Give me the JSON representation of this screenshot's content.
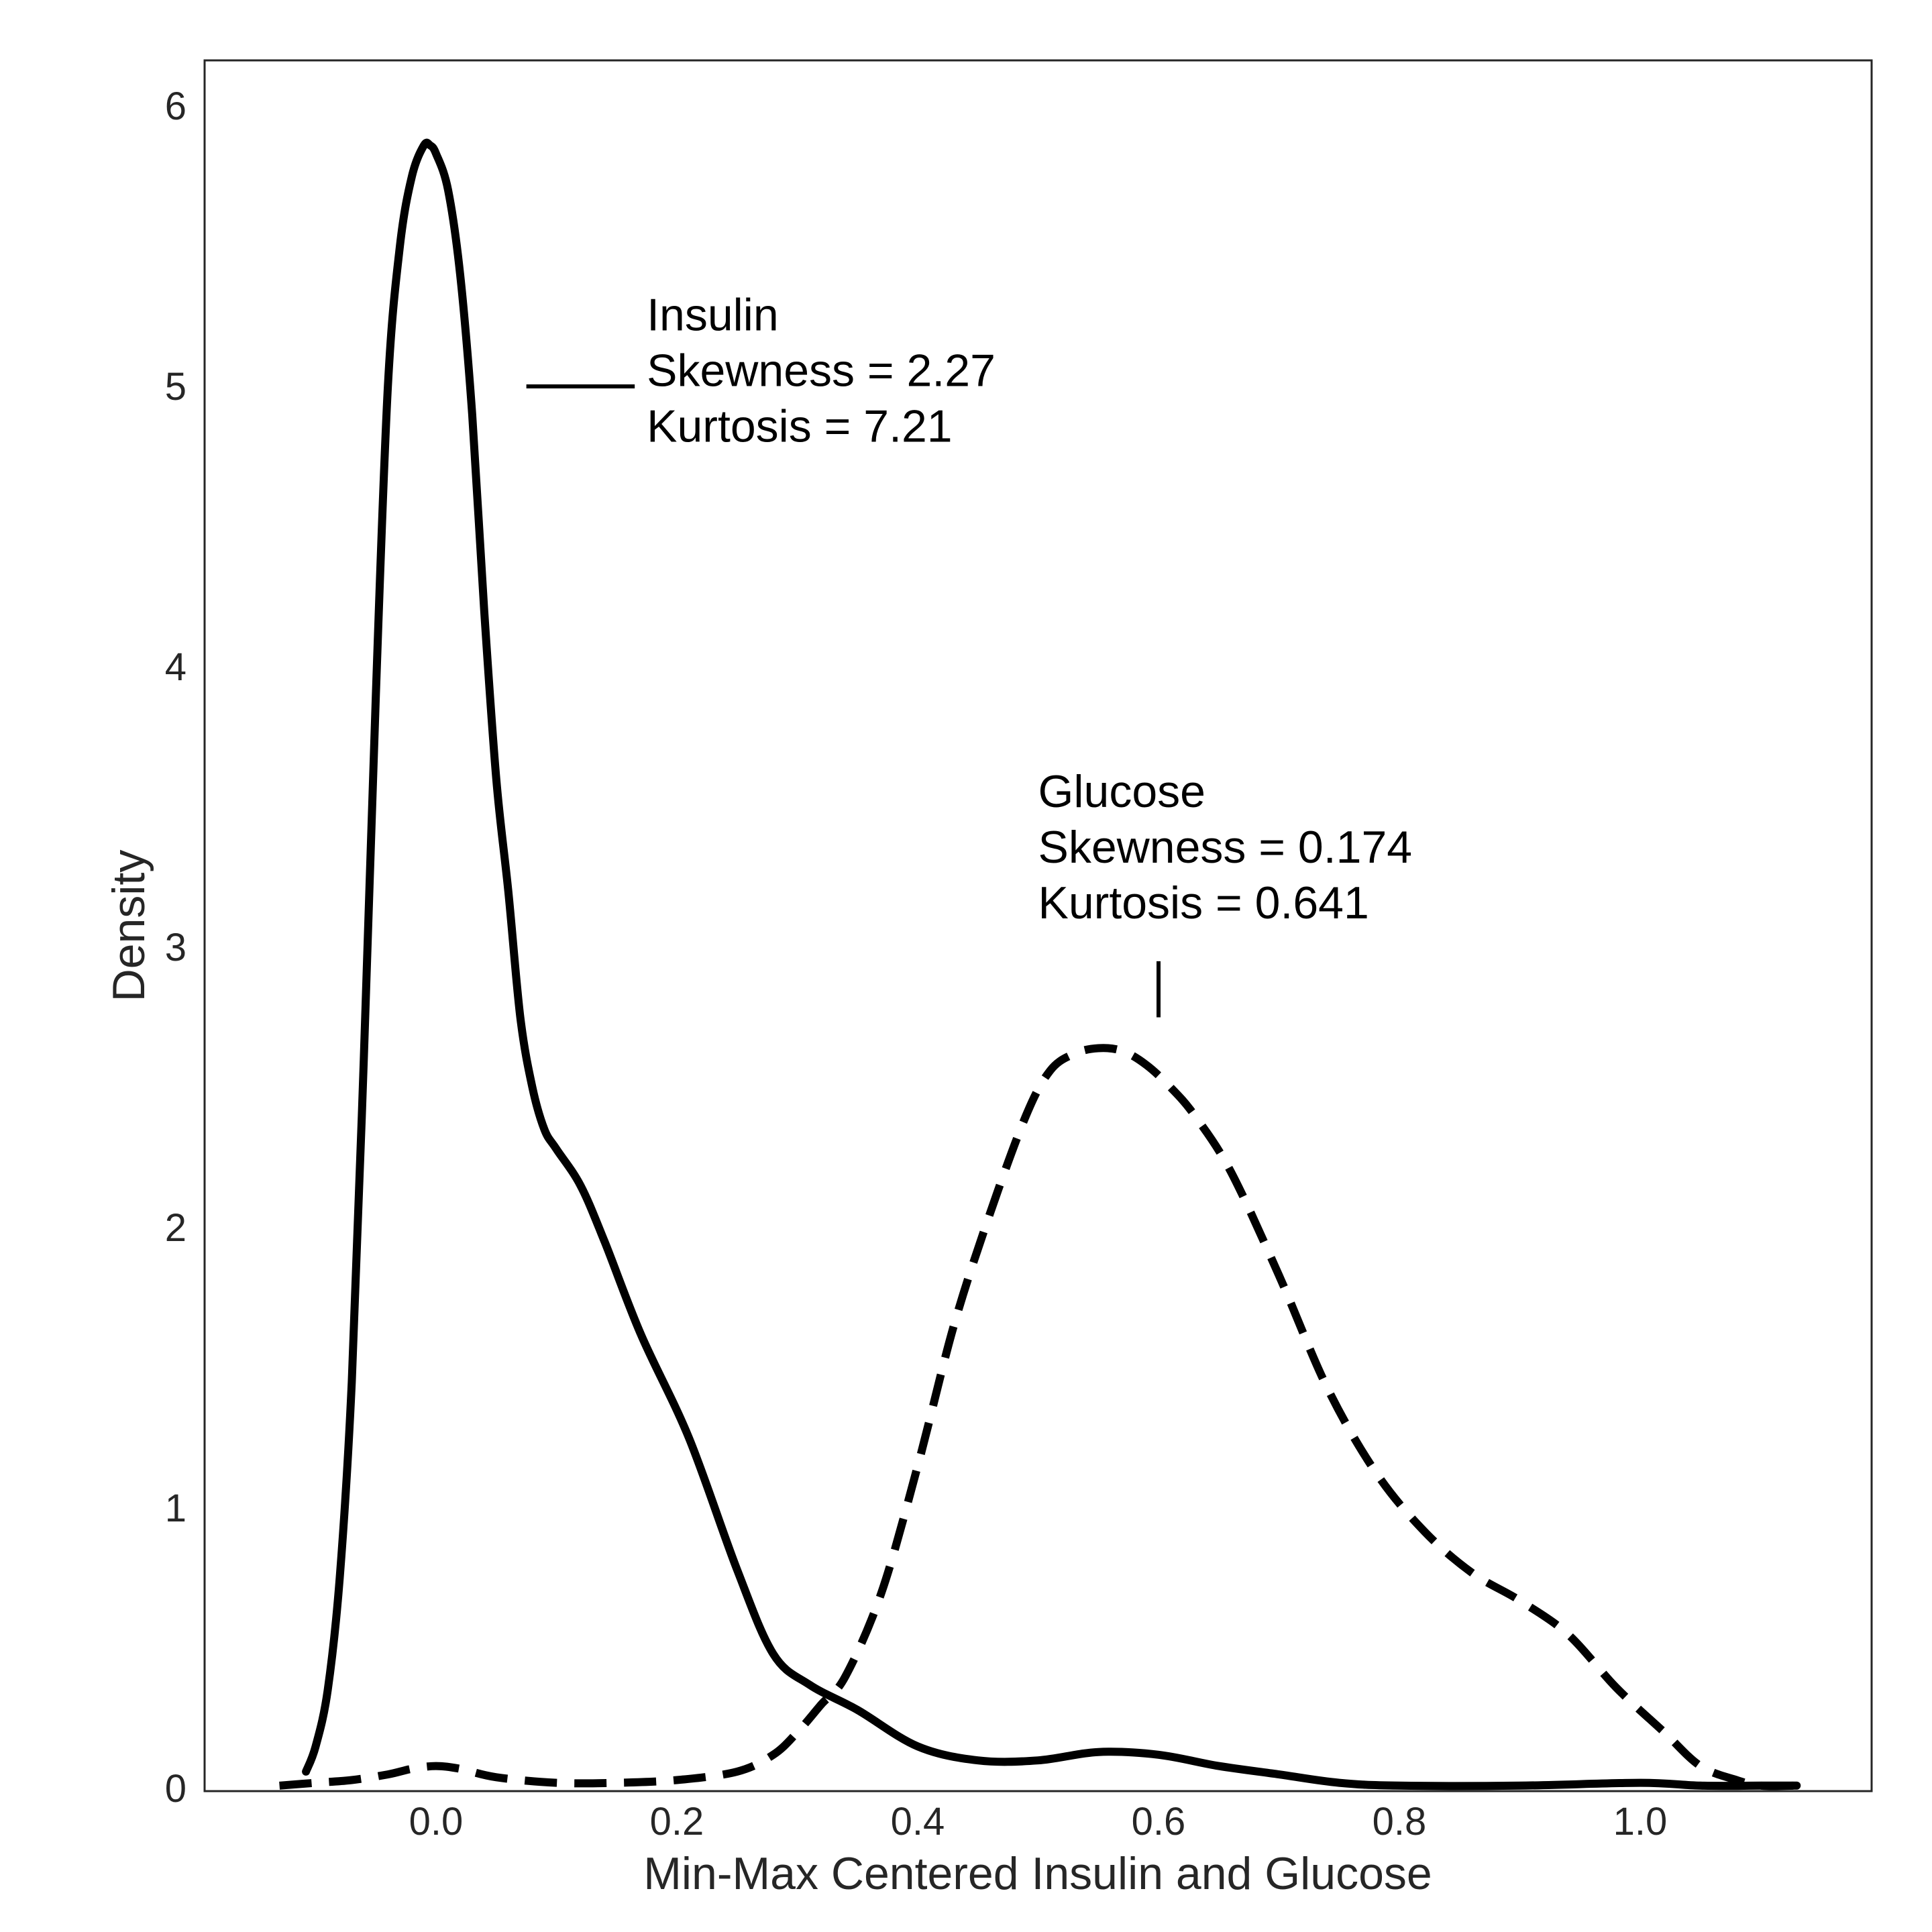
{
  "chart_data": {
    "type": "line",
    "title": "",
    "xlabel": "Min-Max Centered Insulin and Glucose",
    "ylabel": "Density",
    "xlim": [
      -0.19,
      1.19
    ],
    "ylim": [
      0,
      6.17
    ],
    "xticks": [
      0.0,
      0.2,
      0.4,
      0.6,
      0.8,
      1.0
    ],
    "xtick_labels": [
      "0.0",
      "0.2",
      "0.4",
      "0.6",
      "0.8",
      "1.0"
    ],
    "yticks": [
      0,
      1,
      2,
      3,
      4,
      5,
      6
    ],
    "ytick_labels": [
      "0",
      "1",
      "2",
      "3",
      "4",
      "5",
      "6"
    ],
    "grid": false,
    "legend": "none",
    "series": [
      {
        "style": "solid",
        "color": "#000000",
        "x": [
          -0.108,
          -0.1,
          -0.09,
          -0.08,
          -0.07,
          -0.06,
          -0.05,
          -0.04,
          -0.03,
          -0.02,
          -0.01,
          -0.005,
          0.0,
          0.01,
          0.02,
          0.03,
          0.04,
          0.05,
          0.06,
          0.07,
          0.08,
          0.09,
          0.1,
          0.12,
          0.14,
          0.17,
          0.21,
          0.25,
          0.28,
          0.31,
          0.35,
          0.4,
          0.45,
          0.5,
          0.55,
          0.6,
          0.65,
          0.7,
          0.75,
          0.8,
          0.9,
          1.0,
          1.05,
          1.1,
          1.13
        ],
        "y": [
          0.06,
          0.15,
          0.35,
          0.75,
          1.45,
          2.6,
          3.9,
          5.0,
          5.5,
          5.75,
          5.86,
          5.86,
          5.83,
          5.7,
          5.4,
          4.9,
          4.2,
          3.6,
          3.2,
          2.75,
          2.5,
          2.35,
          2.28,
          2.15,
          1.95,
          1.62,
          1.25,
          0.78,
          0.48,
          0.37,
          0.28,
          0.15,
          0.1,
          0.1,
          0.13,
          0.12,
          0.08,
          0.05,
          0.02,
          0.01,
          0.01,
          0.02,
          0.01,
          0.01,
          0.01
        ]
      },
      {
        "style": "dashed",
        "color": "#000000",
        "x": [
          -0.13,
          -0.1,
          -0.07,
          -0.04,
          -0.02,
          0.0,
          0.02,
          0.05,
          0.1,
          0.15,
          0.2,
          0.25,
          0.28,
          0.3,
          0.32,
          0.34,
          0.37,
          0.4,
          0.43,
          0.46,
          0.49,
          0.51,
          0.53,
          0.55,
          0.57,
          0.59,
          0.61,
          0.63,
          0.66,
          0.7,
          0.74,
          0.78,
          0.82,
          0.86,
          0.9,
          0.94,
          0.98,
          1.02,
          1.05,
          1.08,
          1.1,
          1.13
        ],
        "y": [
          0.01,
          0.02,
          0.03,
          0.05,
          0.07,
          0.08,
          0.07,
          0.04,
          0.02,
          0.02,
          0.03,
          0.06,
          0.12,
          0.2,
          0.3,
          0.4,
          0.7,
          1.15,
          1.65,
          2.05,
          2.4,
          2.56,
          2.62,
          2.64,
          2.63,
          2.58,
          2.5,
          2.4,
          2.2,
          1.83,
          1.43,
          1.13,
          0.92,
          0.77,
          0.67,
          0.55,
          0.36,
          0.2,
          0.08,
          0.03,
          0.01,
          0.01
        ]
      }
    ],
    "annotations": [
      {
        "id": "insulin",
        "lines": [
          "Insulin",
          "Skewness = 2.27",
          "Kurtosis = 7.21"
        ],
        "text_anchor_xy": [
          0.175,
          5.2
        ],
        "pointer": [
          [
            0.075,
            5.0
          ],
          [
            0.165,
            5.0
          ]
        ]
      },
      {
        "id": "glucose",
        "lines": [
          "Glucose",
          "Skewness = 0.174",
          "Kurtosis = 0.641"
        ],
        "text_anchor_xy": [
          0.5,
          3.5
        ],
        "pointer": [
          [
            0.6,
            2.95
          ],
          [
            0.6,
            2.75
          ]
        ]
      }
    ]
  }
}
